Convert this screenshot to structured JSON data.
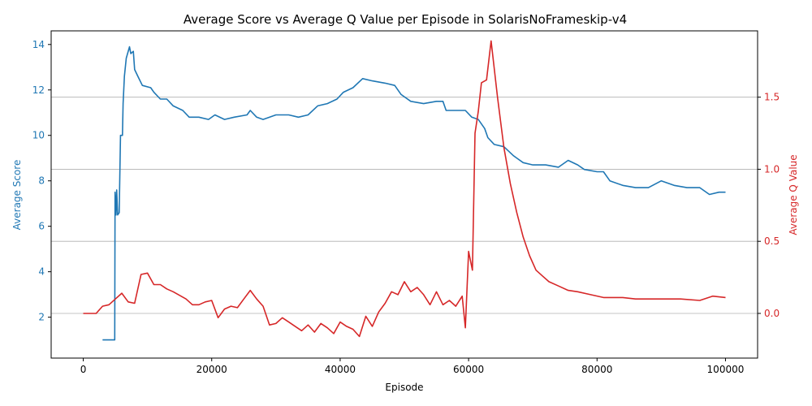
{
  "chart_data": {
    "type": "line",
    "title": "Average Score vs Average Q Value per Episode in SolarisNoFrameskip-v4",
    "xlabel": "Episode",
    "ylabel_left": "Average Score",
    "ylabel_right": "Average Q Value",
    "xlim": [
      -5000,
      105000
    ],
    "ylim_left": [
      0.2,
      14.6
    ],
    "ylim_right": [
      -0.31,
      1.96
    ],
    "x_ticks": [
      0,
      20000,
      40000,
      60000,
      80000,
      100000
    ],
    "y_left_ticks": [
      2,
      4,
      6,
      8,
      10,
      12,
      14
    ],
    "y_right_ticks": [
      0.0,
      0.5,
      1.0,
      1.5
    ],
    "grid": "horizontal lines at right-axis ticks",
    "colors": {
      "score": "#1f77b4",
      "q_value": "#d62728",
      "grid": "#b0b0b0"
    },
    "series": [
      {
        "name": "Average Score",
        "axis": "left",
        "points": [
          [
            3000,
            1.0
          ],
          [
            4900,
            1.0
          ],
          [
            4950,
            7.5
          ],
          [
            5100,
            6.5
          ],
          [
            5200,
            7.6
          ],
          [
            5350,
            6.5
          ],
          [
            5600,
            6.6
          ],
          [
            5800,
            10.0
          ],
          [
            6100,
            10.0
          ],
          [
            6200,
            11.4
          ],
          [
            6400,
            12.6
          ],
          [
            6700,
            13.4
          ],
          [
            7200,
            13.9
          ],
          [
            7400,
            13.6
          ],
          [
            7800,
            13.7
          ],
          [
            8000,
            12.9
          ],
          [
            8500,
            12.6
          ],
          [
            9200,
            12.2
          ],
          [
            10500,
            12.1
          ],
          [
            11000,
            11.9
          ],
          [
            12000,
            11.6
          ],
          [
            13000,
            11.6
          ],
          [
            14000,
            11.3
          ],
          [
            15500,
            11.1
          ],
          [
            16500,
            10.8
          ],
          [
            18000,
            10.8
          ],
          [
            19500,
            10.7
          ],
          [
            20500,
            10.9
          ],
          [
            22000,
            10.7
          ],
          [
            23500,
            10.8
          ],
          [
            25500,
            10.9
          ],
          [
            26000,
            11.1
          ],
          [
            27000,
            10.8
          ],
          [
            28000,
            10.7
          ],
          [
            30000,
            10.9
          ],
          [
            32000,
            10.9
          ],
          [
            33500,
            10.8
          ],
          [
            35000,
            10.9
          ],
          [
            36500,
            11.3
          ],
          [
            38000,
            11.4
          ],
          [
            39500,
            11.6
          ],
          [
            40500,
            11.9
          ],
          [
            42000,
            12.1
          ],
          [
            43500,
            12.5
          ],
          [
            45000,
            12.4
          ],
          [
            47000,
            12.3
          ],
          [
            48500,
            12.2
          ],
          [
            49500,
            11.8
          ],
          [
            51000,
            11.5
          ],
          [
            53000,
            11.4
          ],
          [
            55000,
            11.5
          ],
          [
            56000,
            11.5
          ],
          [
            56500,
            11.1
          ],
          [
            58000,
            11.1
          ],
          [
            59500,
            11.1
          ],
          [
            60500,
            10.8
          ],
          [
            61500,
            10.7
          ],
          [
            62500,
            10.3
          ],
          [
            63000,
            9.9
          ],
          [
            64000,
            9.6
          ],
          [
            65500,
            9.5
          ],
          [
            67000,
            9.1
          ],
          [
            68500,
            8.8
          ],
          [
            70000,
            8.7
          ],
          [
            72000,
            8.7
          ],
          [
            74000,
            8.6
          ],
          [
            75500,
            8.9
          ],
          [
            77000,
            8.7
          ],
          [
            78000,
            8.5
          ],
          [
            80000,
            8.4
          ],
          [
            81000,
            8.4
          ],
          [
            82000,
            8.0
          ],
          [
            84000,
            7.8
          ],
          [
            86000,
            7.7
          ],
          [
            88000,
            7.7
          ],
          [
            90000,
            8.0
          ],
          [
            92000,
            7.8
          ],
          [
            94000,
            7.7
          ],
          [
            96000,
            7.7
          ],
          [
            97500,
            7.4
          ],
          [
            99000,
            7.5
          ],
          [
            100000,
            7.5
          ]
        ]
      },
      {
        "name": "Average Q Value",
        "axis": "right",
        "points": [
          [
            0,
            0.0
          ],
          [
            2000,
            0.0
          ],
          [
            3000,
            0.05
          ],
          [
            4000,
            0.06
          ],
          [
            5000,
            0.1
          ],
          [
            6000,
            0.14
          ],
          [
            7000,
            0.08
          ],
          [
            8000,
            0.07
          ],
          [
            9000,
            0.27
          ],
          [
            10000,
            0.28
          ],
          [
            11000,
            0.2
          ],
          [
            12000,
            0.2
          ],
          [
            13000,
            0.17
          ],
          [
            14000,
            0.15
          ],
          [
            16000,
            0.1
          ],
          [
            17000,
            0.06
          ],
          [
            18000,
            0.06
          ],
          [
            19000,
            0.08
          ],
          [
            20000,
            0.09
          ],
          [
            21000,
            -0.03
          ],
          [
            22000,
            0.03
          ],
          [
            23000,
            0.05
          ],
          [
            24000,
            0.04
          ],
          [
            25000,
            0.1
          ],
          [
            26000,
            0.16
          ],
          [
            27000,
            0.1
          ],
          [
            28000,
            0.05
          ],
          [
            29000,
            -0.08
          ],
          [
            30000,
            -0.07
          ],
          [
            31000,
            -0.03
          ],
          [
            32000,
            -0.06
          ],
          [
            33000,
            -0.09
          ],
          [
            34000,
            -0.12
          ],
          [
            35000,
            -0.08
          ],
          [
            36000,
            -0.13
          ],
          [
            37000,
            -0.07
          ],
          [
            38000,
            -0.1
          ],
          [
            39000,
            -0.14
          ],
          [
            40000,
            -0.06
          ],
          [
            41000,
            -0.09
          ],
          [
            42000,
            -0.11
          ],
          [
            43000,
            -0.16
          ],
          [
            44000,
            -0.02
          ],
          [
            45000,
            -0.09
          ],
          [
            46000,
            0.01
          ],
          [
            47000,
            0.07
          ],
          [
            48000,
            0.15
          ],
          [
            49000,
            0.13
          ],
          [
            50000,
            0.22
          ],
          [
            51000,
            0.15
          ],
          [
            52000,
            0.18
          ],
          [
            53000,
            0.13
          ],
          [
            54000,
            0.06
          ],
          [
            55000,
            0.15
          ],
          [
            56000,
            0.06
          ],
          [
            57000,
            0.09
          ],
          [
            58000,
            0.05
          ],
          [
            59000,
            0.12
          ],
          [
            59500,
            -0.1
          ],
          [
            60000,
            0.43
          ],
          [
            60600,
            0.3
          ],
          [
            61000,
            1.25
          ],
          [
            61500,
            1.4
          ],
          [
            62000,
            1.6
          ],
          [
            62800,
            1.62
          ],
          [
            63500,
            1.89
          ],
          [
            64500,
            1.5
          ],
          [
            65500,
            1.15
          ],
          [
            66500,
            0.9
          ],
          [
            67500,
            0.7
          ],
          [
            68500,
            0.53
          ],
          [
            69500,
            0.4
          ],
          [
            70500,
            0.3
          ],
          [
            71500,
            0.26
          ],
          [
            72500,
            0.22
          ],
          [
            74000,
            0.19
          ],
          [
            75500,
            0.16
          ],
          [
            77000,
            0.15
          ],
          [
            79000,
            0.13
          ],
          [
            81000,
            0.11
          ],
          [
            84000,
            0.11
          ],
          [
            86000,
            0.1
          ],
          [
            88000,
            0.1
          ],
          [
            90000,
            0.1
          ],
          [
            93000,
            0.1
          ],
          [
            96000,
            0.09
          ],
          [
            98000,
            0.12
          ],
          [
            100000,
            0.11
          ]
        ]
      }
    ]
  }
}
